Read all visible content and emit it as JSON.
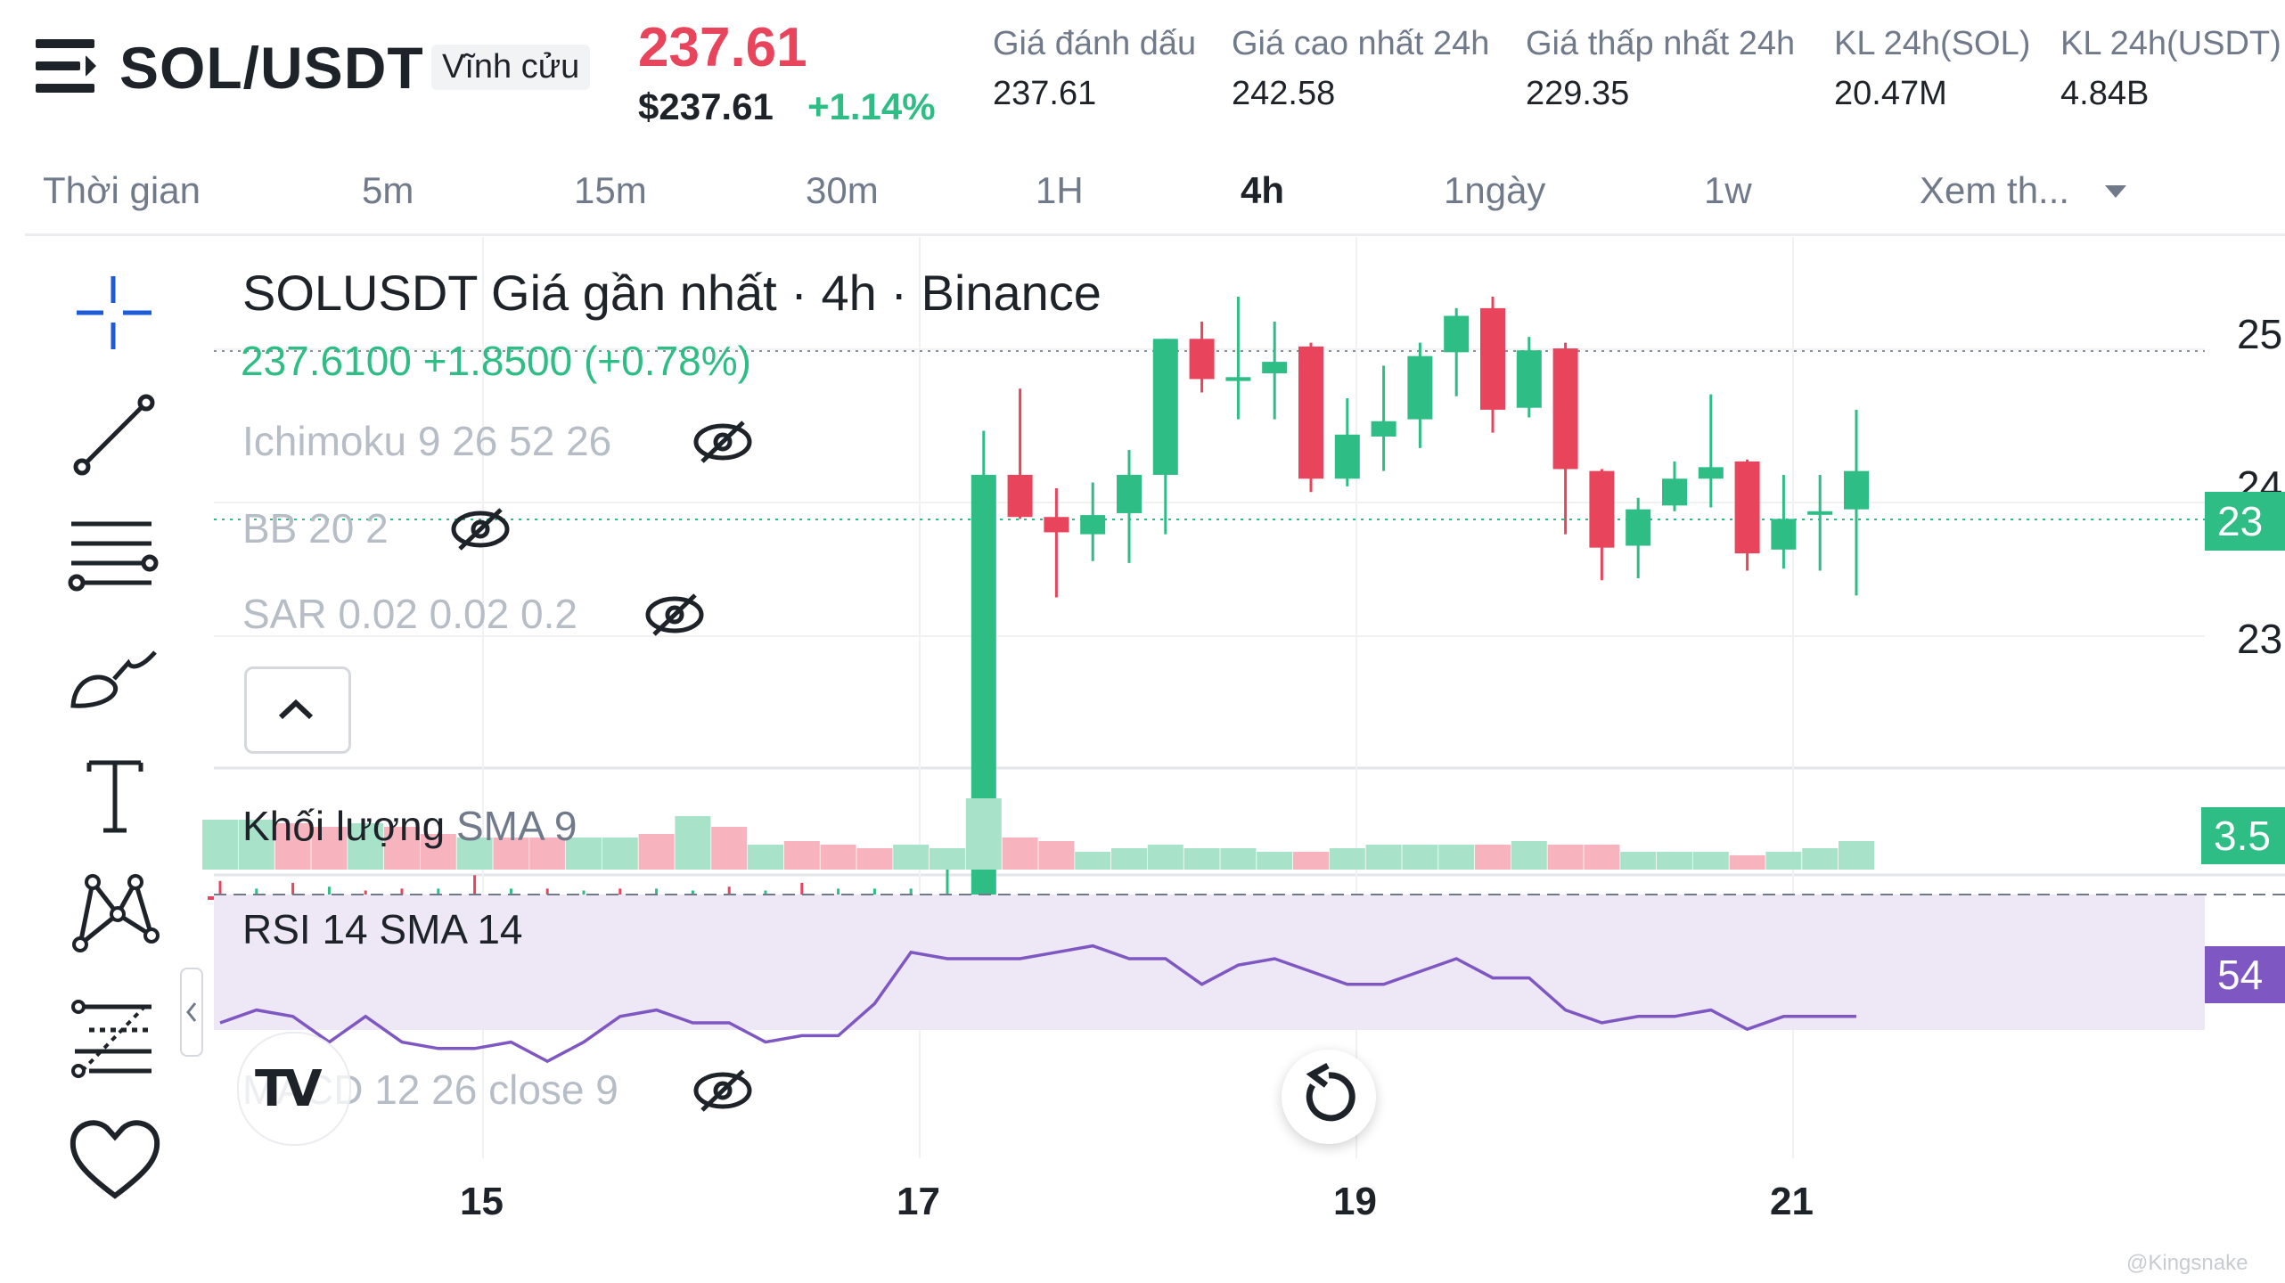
{
  "header": {
    "pair": "SOL/USDT",
    "contract_type": "Vĩnh cửu",
    "last_price": "237.61",
    "usd_price": "$237.61",
    "change_pct": "+1.14%",
    "stats": [
      {
        "label": "Giá đánh dấu",
        "value": "237.61"
      },
      {
        "label": "Giá cao nhất 24h",
        "value": "242.58"
      },
      {
        "label": "Giá thấp nhất 24h",
        "value": "229.35"
      },
      {
        "label": "KL 24h(SOL)",
        "value": "20.47M"
      },
      {
        "label": "KL 24h(USDT)",
        "value": "4.84B"
      }
    ]
  },
  "intervals": {
    "label": "Thời gian",
    "items": [
      "5m",
      "15m",
      "30m",
      "1H",
      "4h",
      "1ngày",
      "1w"
    ],
    "active": "4h",
    "more": "Xem th..."
  },
  "chart_legend": {
    "title": "SOLUSDT Giá gần nhất · 4h · Binance",
    "price_line": "237.6100  +1.8500 (+0.78%)",
    "indicators": [
      "Ichimoku 9 26 52 26",
      "BB 20 2",
      "SAR 0.02 0.02 0.2"
    ],
    "volume": "Khối lượng",
    "volume_sub": "SMA 9",
    "rsi": "RSI 14 SMA 14",
    "macd": "MACD 12 26 close 9"
  },
  "price_axis": {
    "labels": [
      "25",
      "24",
      "23",
      "23"
    ],
    "current_tag": "23",
    "volume_tag": "3.5",
    "rsi_tag": "54"
  },
  "date_axis": [
    "15",
    "17",
    "19",
    "21"
  ],
  "watermark": "@Kingsnake",
  "colors": {
    "up": "#2ebd85",
    "down": "#e8455c",
    "rsi": "#7e57c2",
    "rsi_band": "#ede7f6"
  },
  "chart_data": {
    "type": "candlestick",
    "interval": "4h",
    "candles": [
      {
        "o": 214.5,
        "h": 215.3,
        "l": 213.8,
        "c": 214.4
      },
      {
        "o": 214.3,
        "h": 214.9,
        "l": 213.9,
        "c": 214.4
      },
      {
        "o": 214.4,
        "h": 215.2,
        "l": 213.9,
        "c": 214.3
      },
      {
        "o": 214.3,
        "h": 215.0,
        "l": 213.9,
        "c": 214.4
      },
      {
        "o": 214.4,
        "h": 214.8,
        "l": 213.8,
        "c": 214.3
      },
      {
        "o": 214.3,
        "h": 214.9,
        "l": 213.8,
        "c": 214.1
      },
      {
        "o": 214.3,
        "h": 214.9,
        "l": 213.9,
        "c": 214.4
      },
      {
        "o": 214.3,
        "h": 215.6,
        "l": 213.9,
        "c": 214.2
      },
      {
        "o": 214.3,
        "h": 214.9,
        "l": 213.9,
        "c": 214.4
      },
      {
        "o": 214.4,
        "h": 214.9,
        "l": 213.9,
        "c": 214.3
      },
      {
        "o": 214.3,
        "h": 214.8,
        "l": 213.9,
        "c": 214.4
      },
      {
        "o": 214.4,
        "h": 214.9,
        "l": 213.9,
        "c": 214.3
      },
      {
        "o": 214.3,
        "h": 214.9,
        "l": 213.9,
        "c": 214.4
      },
      {
        "o": 214.2,
        "h": 214.8,
        "l": 213.9,
        "c": 214.5
      },
      {
        "o": 214.5,
        "h": 215.0,
        "l": 213.9,
        "c": 214.2
      },
      {
        "o": 214.2,
        "h": 214.8,
        "l": 213.9,
        "c": 214.4
      },
      {
        "o": 214.3,
        "h": 215.2,
        "l": 213.9,
        "c": 214.1
      },
      {
        "o": 214.2,
        "h": 214.9,
        "l": 213.9,
        "c": 214.3
      },
      {
        "o": 214.3,
        "h": 214.9,
        "l": 213.9,
        "c": 214.3
      },
      {
        "o": 214.3,
        "h": 214.9,
        "l": 213.8,
        "c": 214.4
      },
      {
        "o": 214.3,
        "h": 216.9,
        "l": 213.9,
        "c": 214.4
      },
      {
        "o": 214.3,
        "h": 238.8,
        "l": 214.0,
        "c": 236.5
      },
      {
        "o": 236.5,
        "h": 241.0,
        "l": 234.2,
        "c": 234.3
      },
      {
        "o": 234.3,
        "h": 235.8,
        "l": 230.1,
        "c": 233.5
      },
      {
        "o": 233.4,
        "h": 236.1,
        "l": 232.0,
        "c": 234.4
      },
      {
        "o": 234.5,
        "h": 237.8,
        "l": 231.9,
        "c": 236.5
      },
      {
        "o": 236.5,
        "h": 243.6,
        "l": 233.4,
        "c": 243.6
      },
      {
        "o": 243.6,
        "h": 244.5,
        "l": 240.8,
        "c": 241.5
      },
      {
        "o": 241.4,
        "h": 245.8,
        "l": 239.4,
        "c": 241.6
      },
      {
        "o": 241.8,
        "h": 244.5,
        "l": 239.4,
        "c": 242.4
      },
      {
        "o": 243.2,
        "h": 243.4,
        "l": 235.6,
        "c": 236.3
      },
      {
        "o": 236.3,
        "h": 240.5,
        "l": 235.9,
        "c": 238.6
      },
      {
        "o": 238.5,
        "h": 242.2,
        "l": 236.7,
        "c": 239.3
      },
      {
        "o": 239.4,
        "h": 243.4,
        "l": 237.9,
        "c": 242.7
      },
      {
        "o": 242.9,
        "h": 245.2,
        "l": 240.6,
        "c": 244.8
      },
      {
        "o": 245.2,
        "h": 245.8,
        "l": 238.7,
        "c": 239.9
      },
      {
        "o": 240.0,
        "h": 243.7,
        "l": 239.5,
        "c": 243.0
      },
      {
        "o": 243.1,
        "h": 243.4,
        "l": 233.4,
        "c": 236.8
      },
      {
        "o": 236.7,
        "h": 236.8,
        "l": 231.0,
        "c": 232.7
      },
      {
        "o": 232.8,
        "h": 235.3,
        "l": 231.1,
        "c": 234.7
      },
      {
        "o": 234.9,
        "h": 237.2,
        "l": 234.6,
        "c": 236.3
      },
      {
        "o": 236.3,
        "h": 240.7,
        "l": 234.8,
        "c": 236.9
      },
      {
        "o": 237.2,
        "h": 237.3,
        "l": 231.5,
        "c": 232.4
      },
      {
        "o": 232.6,
        "h": 236.5,
        "l": 231.6,
        "c": 234.2
      },
      {
        "o": 234.5,
        "h": 236.5,
        "l": 231.5,
        "c": 234.6
      },
      {
        "o": 234.7,
        "h": 239.9,
        "l": 230.2,
        "c": 236.7
      }
    ],
    "volume_up": [
      true,
      true,
      false,
      false,
      true,
      false,
      false,
      true,
      false,
      false,
      true,
      true,
      false,
      true,
      false,
      true,
      false,
      false,
      false,
      true,
      true,
      true,
      false,
      false,
      true,
      true,
      true,
      true,
      true,
      true,
      false,
      true,
      true,
      true,
      true,
      false,
      true,
      false,
      false,
      true,
      true,
      true,
      false,
      true,
      true,
      true
    ],
    "volume": [
      28,
      28,
      26,
      24,
      26,
      24,
      20,
      18,
      18,
      18,
      18,
      18,
      20,
      30,
      24,
      14,
      16,
      14,
      12,
      14,
      12,
      40,
      18,
      16,
      10,
      12,
      14,
      12,
      12,
      10,
      10,
      12,
      14,
      14,
      14,
      14,
      16,
      14,
      14,
      10,
      10,
      10,
      8,
      10,
      12,
      16
    ],
    "rsi": [
      50,
      52,
      51,
      47,
      51,
      47,
      46,
      46,
      47,
      44,
      47,
      51,
      52,
      50,
      50,
      47,
      48,
      48,
      53,
      61,
      60,
      60,
      60,
      61,
      62,
      60,
      60,
      56,
      59,
      60,
      58,
      56,
      56,
      58,
      60,
      57,
      57,
      52,
      50,
      51,
      51,
      52,
      49,
      51,
      51,
      51
    ],
    "rsi_overbought_line": 70,
    "date_ticks": [
      "15",
      "17",
      "19",
      "21"
    ]
  }
}
